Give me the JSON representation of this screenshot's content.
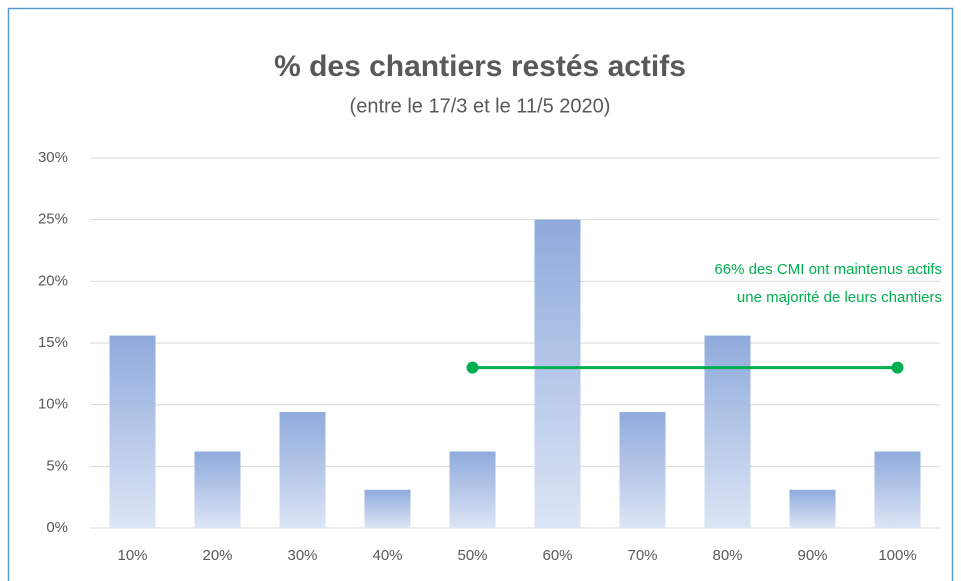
{
  "chart_data": {
    "type": "bar",
    "title": "% des chantiers restés actifs",
    "subtitle": "(entre le 17/3 et le 11/5 2020)",
    "categories": [
      "10%",
      "20%",
      "30%",
      "40%",
      "50%",
      "60%",
      "70%",
      "80%",
      "90%",
      "100%"
    ],
    "values": [
      15.6,
      6.2,
      9.4,
      3.1,
      6.2,
      25,
      9.4,
      15.6,
      3.1,
      6.2
    ],
    "color": "#8faadc",
    "ylim": [
      0,
      30
    ],
    "yticks": [
      {
        "value": 0,
        "label": "0%"
      },
      {
        "value": 5,
        "label": "5%"
      },
      {
        "value": 10,
        "label": "10%"
      },
      {
        "value": 15,
        "label": "15%"
      },
      {
        "value": 20,
        "label": "20%"
      },
      {
        "value": 25,
        "label": "25%"
      },
      {
        "value": 30,
        "label": "30%"
      }
    ],
    "grid": true,
    "annotation": {
      "lines": [
        "66% des CMI ont maintenus actifs",
        "une majorité de leurs chantiers"
      ],
      "color": "#00b050",
      "y": 13,
      "from": "50%",
      "to": "100%"
    }
  }
}
